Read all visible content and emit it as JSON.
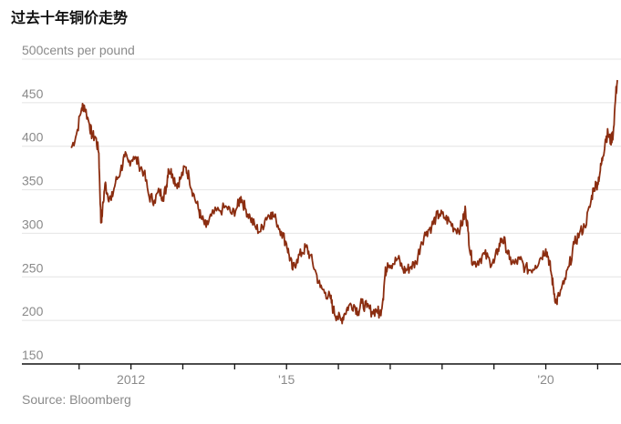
{
  "header": {
    "title": "过去十年铜价走势"
  },
  "chart_data": {
    "type": "line",
    "title": "过去十年铜价走势",
    "ylabel": "cents per pound",
    "ylim": [
      150,
      500
    ],
    "y_ticks": [
      150,
      200,
      250,
      300,
      350,
      400,
      450,
      500
    ],
    "y_tick_labels": [
      "150",
      "200",
      "250",
      "300",
      "350",
      "400",
      "450",
      "500cents per pound"
    ],
    "x_tick_labels": [
      {
        "x": 2012,
        "label": "2012"
      },
      {
        "x": 2015,
        "label": "'15"
      },
      {
        "x": 2020,
        "label": "'20"
      }
    ],
    "x_ticks": [
      2011,
      2012,
      2013,
      2014,
      2015,
      2016,
      2017,
      2018,
      2019,
      2020,
      2021
    ],
    "xlim": [
      2010.6,
      2021.45
    ],
    "grid": true,
    "legend": "none",
    "colors": {
      "line": "#8b2d10",
      "grid": "#e4e4e4",
      "axis": "#111111",
      "text": "#8a8a8a"
    },
    "series": [
      {
        "values": [
          [
            2010.85,
            398
          ],
          [
            2010.95,
            414
          ],
          [
            2011.05,
            444
          ],
          [
            2011.1,
            447
          ],
          [
            2011.2,
            425
          ],
          [
            2011.25,
            412
          ],
          [
            2011.32,
            410
          ],
          [
            2011.38,
            392
          ],
          [
            2011.42,
            312
          ],
          [
            2011.45,
            325
          ],
          [
            2011.5,
            357
          ],
          [
            2011.55,
            345
          ],
          [
            2011.62,
            338
          ],
          [
            2011.7,
            358
          ],
          [
            2011.8,
            372
          ],
          [
            2011.88,
            388
          ],
          [
            2011.95,
            382
          ],
          [
            2012.05,
            388
          ],
          [
            2012.15,
            380
          ],
          [
            2012.25,
            370
          ],
          [
            2012.35,
            342
          ],
          [
            2012.45,
            338
          ],
          [
            2012.55,
            348
          ],
          [
            2012.62,
            342
          ],
          [
            2012.68,
            352
          ],
          [
            2012.72,
            374
          ],
          [
            2012.8,
            368
          ],
          [
            2012.88,
            356
          ],
          [
            2012.95,
            362
          ],
          [
            2013.05,
            376
          ],
          [
            2013.12,
            365
          ],
          [
            2013.2,
            346
          ],
          [
            2013.3,
            328
          ],
          [
            2013.35,
            318
          ],
          [
            2013.45,
            307
          ],
          [
            2013.55,
            320
          ],
          [
            2013.7,
            326
          ],
          [
            2013.85,
            330
          ],
          [
            2013.95,
            322
          ],
          [
            2014.05,
            330
          ],
          [
            2014.12,
            342
          ],
          [
            2014.2,
            329
          ],
          [
            2014.3,
            318
          ],
          [
            2014.4,
            307
          ],
          [
            2014.5,
            302
          ],
          [
            2014.6,
            318
          ],
          [
            2014.7,
            324
          ],
          [
            2014.8,
            315
          ],
          [
            2014.9,
            302
          ],
          [
            2015.0,
            288
          ],
          [
            2015.05,
            275
          ],
          [
            2015.12,
            258
          ],
          [
            2015.2,
            270
          ],
          [
            2015.3,
            278
          ],
          [
            2015.38,
            284
          ],
          [
            2015.45,
            275
          ],
          [
            2015.55,
            258
          ],
          [
            2015.65,
            238
          ],
          [
            2015.75,
            232
          ],
          [
            2015.85,
            225
          ],
          [
            2015.9,
            212
          ],
          [
            2015.97,
            205
          ],
          [
            2016.05,
            200
          ],
          [
            2016.12,
            208
          ],
          [
            2016.2,
            217
          ],
          [
            2016.3,
            218
          ],
          [
            2016.38,
            210
          ],
          [
            2016.45,
            220
          ],
          [
            2016.55,
            215
          ],
          [
            2016.65,
            210
          ],
          [
            2016.75,
            212
          ],
          [
            2016.8,
            206
          ],
          [
            2016.86,
            225
          ],
          [
            2016.9,
            253
          ],
          [
            2016.95,
            266
          ],
          [
            2017.05,
            265
          ],
          [
            2017.15,
            271
          ],
          [
            2017.25,
            258
          ],
          [
            2017.32,
            258
          ],
          [
            2017.4,
            262
          ],
          [
            2017.5,
            266
          ],
          [
            2017.6,
            290
          ],
          [
            2017.7,
            302
          ],
          [
            2017.8,
            308
          ],
          [
            2017.88,
            318
          ],
          [
            2017.95,
            322
          ],
          [
            2018.05,
            318
          ],
          [
            2018.15,
            313
          ],
          [
            2018.25,
            305
          ],
          [
            2018.35,
            306
          ],
          [
            2018.42,
            318
          ],
          [
            2018.45,
            328
          ],
          [
            2018.5,
            303
          ],
          [
            2018.55,
            275
          ],
          [
            2018.62,
            265
          ],
          [
            2018.72,
            270
          ],
          [
            2018.82,
            276
          ],
          [
            2018.92,
            268
          ],
          [
            2019.0,
            266
          ],
          [
            2019.08,
            282
          ],
          [
            2019.15,
            294
          ],
          [
            2019.22,
            288
          ],
          [
            2019.3,
            270
          ],
          [
            2019.4,
            265
          ],
          [
            2019.5,
            270
          ],
          [
            2019.6,
            260
          ],
          [
            2019.7,
            258
          ],
          [
            2019.8,
            263
          ],
          [
            2019.9,
            272
          ],
          [
            2020.0,
            282
          ],
          [
            2020.05,
            272
          ],
          [
            2020.1,
            256
          ],
          [
            2020.15,
            236
          ],
          [
            2020.2,
            220
          ],
          [
            2020.25,
            228
          ],
          [
            2020.35,
            242
          ],
          [
            2020.45,
            262
          ],
          [
            2020.55,
            288
          ],
          [
            2020.65,
            300
          ],
          [
            2020.75,
            308
          ],
          [
            2020.85,
            330
          ],
          [
            2020.92,
            352
          ],
          [
            2021.0,
            358
          ],
          [
            2021.05,
            372
          ],
          [
            2021.1,
            388
          ],
          [
            2021.15,
            408
          ],
          [
            2021.2,
            415
          ],
          [
            2021.25,
            405
          ],
          [
            2021.3,
            415
          ],
          [
            2021.35,
            460
          ],
          [
            2021.38,
            476
          ]
        ]
      }
    ]
  },
  "footer": {
    "source": "Source: Bloomberg"
  }
}
